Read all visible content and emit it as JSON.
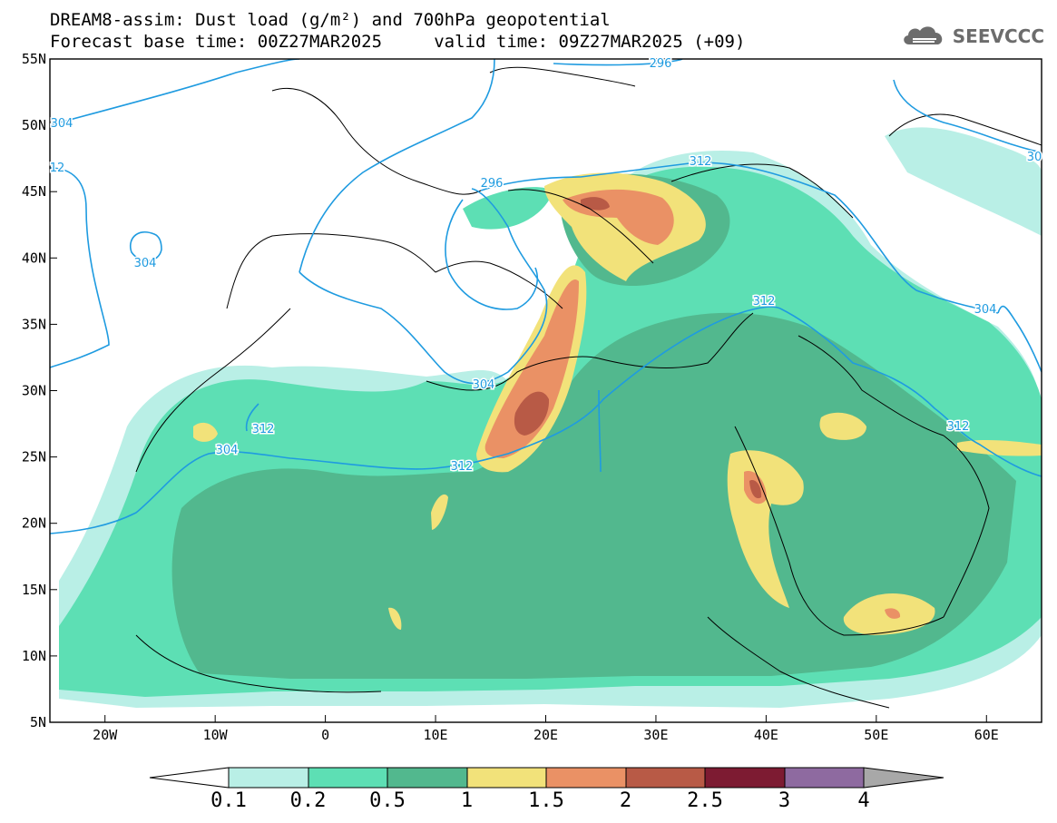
{
  "header": {
    "title_line1": "DREAM8-assim: Dust load (g/m²) and 700hPa geopotential",
    "title_line2": "Forecast base time: 00Z27MAR2025     valid time: 09Z27MAR2025 (+09)"
  },
  "brand": {
    "name": "SEEVCCC",
    "logo_icon": "cloud-logo-icon",
    "color": "#6c6c6c"
  },
  "map": {
    "lon_range": [
      -25,
      65
    ],
    "lat_range": [
      5,
      55
    ],
    "lon_ticks": [
      "20W",
      "10W",
      "0",
      "10E",
      "20E",
      "30E",
      "40E",
      "50E",
      "60E"
    ],
    "lat_ticks": [
      "55N",
      "50N",
      "45N",
      "40N",
      "35N",
      "30N",
      "25N",
      "20N",
      "15N",
      "10N",
      "5N"
    ],
    "contour_color": "#1f9be0",
    "contour_labels": [
      "296",
      "304",
      "12",
      "296",
      "304",
      "304",
      "312",
      "304",
      "312",
      "312",
      "312",
      "312",
      "304",
      "30"
    ]
  },
  "colorbar": {
    "labels": [
      "0.1",
      "0.2",
      "0.5",
      "1",
      "1.5",
      "2",
      "2.5",
      "3",
      "4"
    ],
    "colors": [
      "#ffffff",
      "#b9efe6",
      "#5ddfb4",
      "#52b88e",
      "#f2e27a",
      "#ea9165",
      "#b85a46",
      "#7d1b32",
      "#8e6aa0",
      "#a8a8a8"
    ]
  }
}
